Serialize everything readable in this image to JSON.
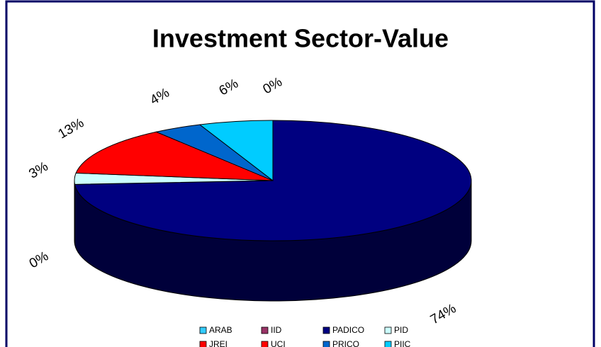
{
  "chart_data": {
    "type": "pie3d",
    "title": "Investment Sector-Value",
    "categories": [
      "ARAB",
      "IID",
      "PADICO",
      "PID",
      "JREI",
      "UCI",
      "PRICO",
      "PIIC"
    ],
    "values": [
      0,
      0,
      74,
      3,
      null,
      13,
      4,
      6
    ],
    "value_labels": [
      "0%",
      "0%",
      "74%",
      "3%",
      null,
      "13%",
      "4%",
      "6%"
    ],
    "colors": [
      "#33ccff",
      "#993366",
      "#000080",
      "#ccffff",
      "#ff0000",
      "#ff0000",
      "#0066cc",
      "#00ccff"
    ],
    "legend": "bottom"
  }
}
